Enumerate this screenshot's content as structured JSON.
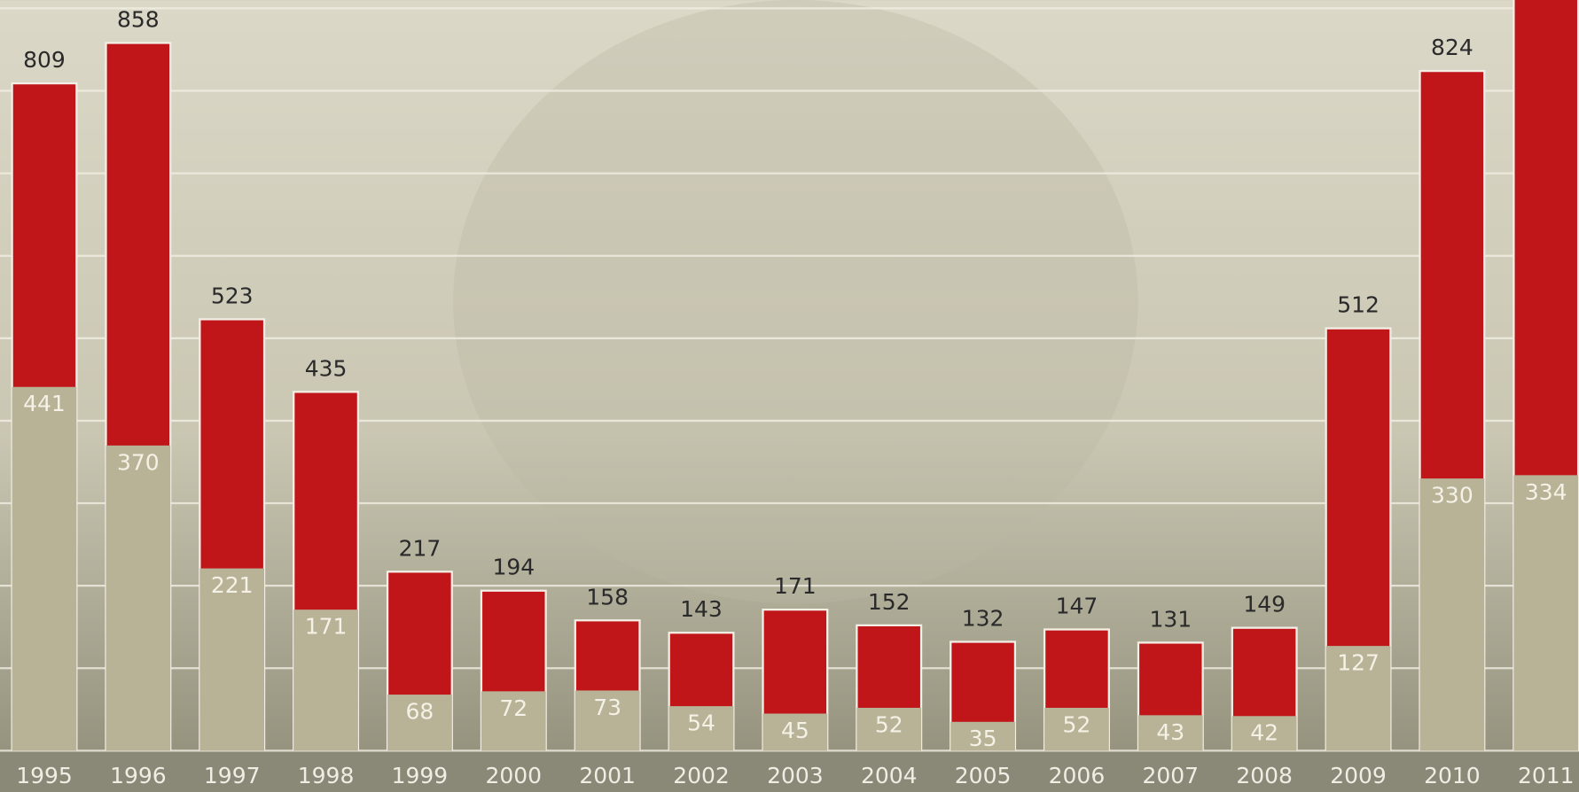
{
  "chart_data": {
    "type": "bar",
    "categories": [
      "1995",
      "1996",
      "1997",
      "1998",
      "1999",
      "2000",
      "2001",
      "2002",
      "2003",
      "2004",
      "2005",
      "2006",
      "2007",
      "2008",
      "2009",
      "2010",
      "2011"
    ],
    "series": [
      {
        "name": "total",
        "color": "#c0161a",
        "values": [
          809,
          858,
          523,
          435,
          217,
          194,
          158,
          143,
          171,
          152,
          132,
          147,
          131,
          149,
          512,
          824,
          960
        ],
        "value_labels": [
          "809",
          "858",
          "523",
          "435",
          "217",
          "194",
          "158",
          "143",
          "171",
          "152",
          "132",
          "147",
          "131",
          "149",
          "512",
          "824",
          null
        ]
      },
      {
        "name": "part",
        "color": "#b8b296",
        "values": [
          441,
          370,
          221,
          171,
          68,
          72,
          73,
          54,
          45,
          52,
          35,
          52,
          43,
          42,
          127,
          330,
          334
        ]
      }
    ],
    "ylim": [
      0,
      910
    ],
    "yticks": [
      0,
      100,
      200,
      300,
      400,
      500,
      600,
      700,
      800,
      900
    ],
    "grid": true
  }
}
